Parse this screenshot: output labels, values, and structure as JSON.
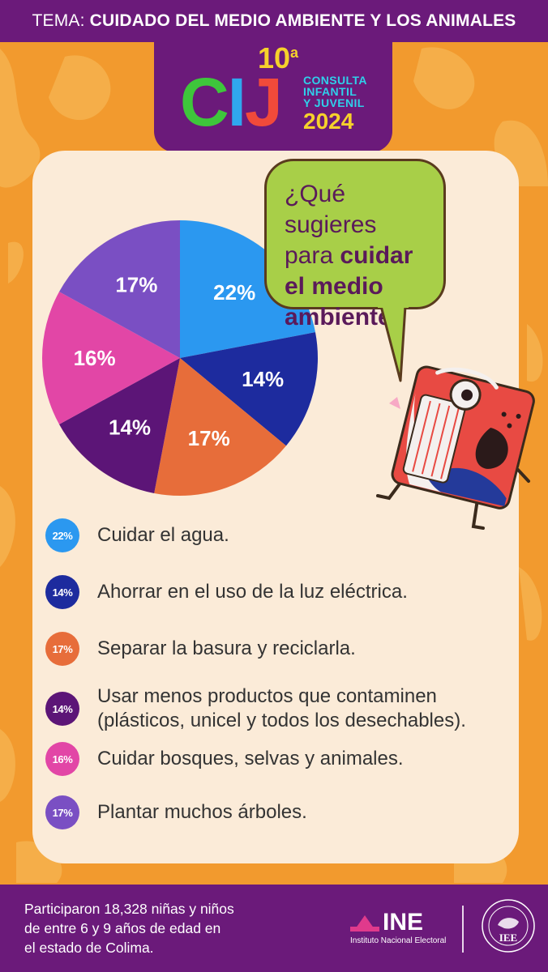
{
  "header": {
    "prefix": "TEMA:",
    "topic": "CUIDADO DEL MEDIO AMBIENTE Y LOS ANIMALES"
  },
  "logo": {
    "number": "10",
    "ordinal": "a",
    "letters_c": "C",
    "letters_i": "I",
    "letters_j": "J",
    "line1": "CONSULTA",
    "line2": "INFANTIL",
    "line3": "Y JUVENIL",
    "year": "2024"
  },
  "question": {
    "part1": "¿Qué sugieres",
    "part2_regular": "para ",
    "part2_bold": "cuidar",
    "part3": "el medio",
    "part4": "ambiente?"
  },
  "chart_data": {
    "type": "pie",
    "title": "",
    "slices": [
      {
        "label": "Cuidar el agua.",
        "value": 22,
        "display": "22%",
        "color": "#2b98f0"
      },
      {
        "label": "Ahorrar en el uso de la luz eléctrica.",
        "value": 14,
        "display": "14%",
        "color": "#1d2b9e"
      },
      {
        "label": "Separar la basura y reciclarla.",
        "value": 17,
        "display": "17%",
        "color": "#e76d3a"
      },
      {
        "label": "Usar menos productos que contaminen (plásticos, unicel y todos los desechables).",
        "value": 14,
        "display": "14%",
        "color": "#5c1577"
      },
      {
        "label": "Cuidar bosques, selvas y animales.",
        "value": 16,
        "display": "16%",
        "color": "#e246a6"
      },
      {
        "label": "Plantar muchos árboles.",
        "value": 17,
        "display": "17%",
        "color": "#7a4fc3"
      }
    ]
  },
  "legend": {
    "items": [
      {
        "badge": "22%",
        "line1": "Cuidar el agua.",
        "line2": ""
      },
      {
        "badge": "14%",
        "line1": "Ahorrar en el uso de la luz eléctrica.",
        "line2": ""
      },
      {
        "badge": "17%",
        "line1": "Separar la basura y reciclarla.",
        "line2": ""
      },
      {
        "badge": "14%",
        "line1": "Usar menos productos que contaminen",
        "line2": "(plásticos, unicel y todos los desechables)."
      },
      {
        "badge": "16%",
        "line1": "Cuidar bosques, selvas y animales.",
        "line2": ""
      },
      {
        "badge": "17%",
        "line1": "Plantar muchos árboles.",
        "line2": ""
      }
    ]
  },
  "footer": {
    "line1": "Participaron 18,328 niñas y niños",
    "line2": "de entre 6 y 9 años de edad en",
    "line3": "el estado de Colima.",
    "ine_word": "INE",
    "ine_sub": "Instituto Nacional Electoral",
    "iee_word": "IEE"
  },
  "colors": {
    "purple": "#6b1a7a",
    "orange": "#f29a2e",
    "card": "#fbebd8",
    "bubble": "#a8cf48"
  }
}
